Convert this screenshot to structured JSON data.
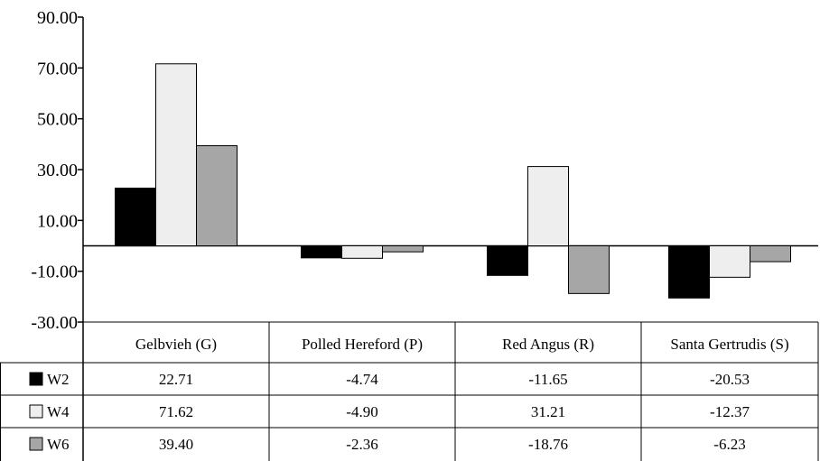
{
  "chart_data": {
    "type": "bar",
    "title": "",
    "xlabel": "",
    "ylabel": "",
    "ylim": [
      -30,
      90
    ],
    "y_ticks": [
      90,
      70,
      50,
      30,
      10,
      -10,
      -30
    ],
    "y_tick_labels": [
      "90.00",
      "70.00",
      "50.00",
      "30.00",
      "10.00",
      "-10.00",
      "-30.00"
    ],
    "categories": [
      "Gelbvieh (G)",
      "Polled Hereford (P)",
      "Red Angus (R)",
      "Santa Gertrudis (S)"
    ],
    "series": [
      {
        "name": "W2",
        "color": "#000000",
        "values": [
          22.71,
          -4.74,
          -11.65,
          -20.53
        ],
        "labels": [
          "22.71",
          "-4.74",
          "-11.65",
          "-20.53"
        ]
      },
      {
        "name": "W4",
        "color": "#eeeeee",
        "values": [
          71.62,
          -4.9,
          31.21,
          -12.37
        ],
        "labels": [
          "71.62",
          "-4.90",
          "31.21",
          "-12.37"
        ]
      },
      {
        "name": "W6",
        "color": "#a6a6a6",
        "values": [
          39.4,
          -2.36,
          -18.76,
          -6.23
        ],
        "labels": [
          "39.40",
          "-2.36",
          "-18.76",
          "-6.23"
        ]
      }
    ],
    "grid": false,
    "legend": "data-table"
  }
}
